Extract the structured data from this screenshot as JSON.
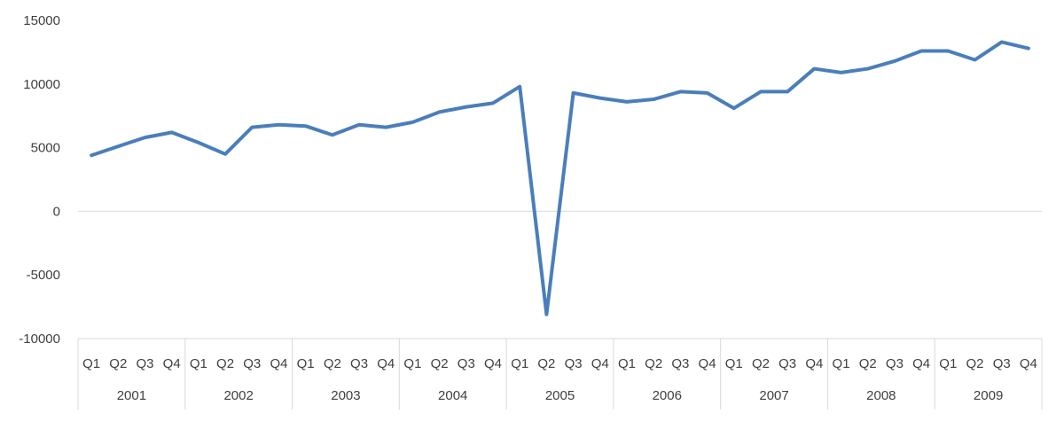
{
  "chart_data": {
    "type": "line",
    "title": "",
    "xlabel": "",
    "ylabel": "",
    "ylim": [
      -10000,
      15000
    ],
    "yticks": [
      15000,
      10000,
      5000,
      0,
      -5000,
      -10000
    ],
    "ytick_labels": [
      "15000",
      "10000",
      "5000",
      "0",
      "-5000",
      "-10000"
    ],
    "grid": false,
    "legend": "none",
    "line_color": "#4a7ebb",
    "axis_color": "#d9d9d9",
    "years": [
      "2001",
      "2002",
      "2003",
      "2004",
      "2005",
      "2006",
      "2007",
      "2008",
      "2009"
    ],
    "quarters": [
      "Q1",
      "Q2",
      "Q3",
      "Q4"
    ],
    "series": [
      {
        "values": [
          4400,
          5100,
          5800,
          6200,
          5400,
          4500,
          6600,
          6800,
          6700,
          6000,
          6800,
          6600,
          7000,
          7800,
          8200,
          8500,
          9800,
          -8100,
          9300,
          8900,
          8600,
          8800,
          9400,
          9300,
          8100,
          9400,
          9400,
          11200,
          10900,
          11200,
          11800,
          12600,
          12600,
          11900,
          13300,
          12800
        ]
      }
    ]
  }
}
